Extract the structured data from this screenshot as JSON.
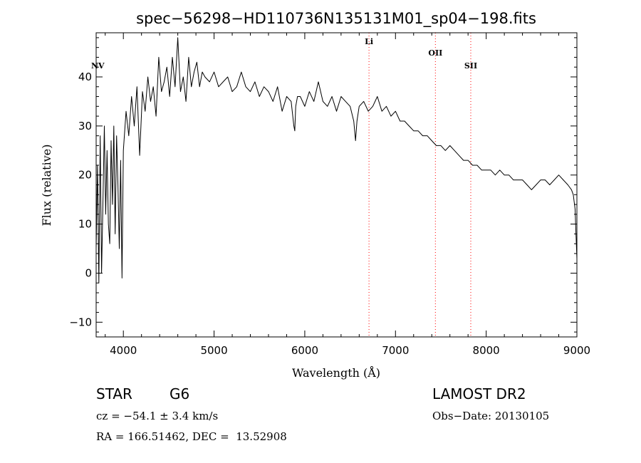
{
  "info": {
    "class_label": "STAR",
    "subclass": "G6",
    "redshift_text": "cz = −54.1 ± 3.4 km/s",
    "coords_text": "RA = 166.51462, DEC =  13.52908",
    "survey": "LAMOST DR2",
    "obs_date": "Obs−Date: 20130105"
  },
  "chart_data": {
    "type": "line",
    "title": "spec−56298−HD110736N135131M01_sp04−198.fits",
    "xlabel": "Wavelength (Å)",
    "ylabel": "Flux (relative)",
    "xlim": [
      3700,
      9000
    ],
    "ylim": [
      -13,
      49
    ],
    "x_ticks": [
      4000,
      5000,
      6000,
      7000,
      8000,
      9000
    ],
    "y_ticks": [
      -10,
      0,
      10,
      20,
      30,
      40
    ],
    "y_tick_labels": [
      "−10",
      "0",
      "10",
      "20",
      "30",
      "40"
    ],
    "grid": false,
    "series": [
      {
        "x": [
          3700,
          3715,
          3730,
          3745,
          3760,
          3775,
          3790,
          3805,
          3820,
          3835,
          3850,
          3865,
          3880,
          3895,
          3910,
          3925,
          3940,
          3955,
          3970,
          3985,
          4000,
          4030,
          4060,
          4090,
          4120,
          4150,
          4180,
          4210,
          4240,
          4270,
          4300,
          4330,
          4360,
          4390,
          4420,
          4450,
          4480,
          4510,
          4540,
          4570,
          4600,
          4630,
          4660,
          4690,
          4720,
          4750,
          4780,
          4810,
          4840,
          4870,
          4900,
          4950,
          5000,
          5050,
          5100,
          5150,
          5200,
          5250,
          5300,
          5350,
          5400,
          5450,
          5500,
          5550,
          5600,
          5650,
          5700,
          5750,
          5800,
          5850,
          5880,
          5890,
          5900,
          5920,
          5950,
          6000,
          6050,
          6100,
          6150,
          6200,
          6250,
          6300,
          6350,
          6400,
          6450,
          6500,
          6540,
          6560,
          6575,
          6600,
          6650,
          6700,
          6750,
          6800,
          6850,
          6900,
          6950,
          7000,
          7050,
          7100,
          7150,
          7200,
          7250,
          7300,
          7350,
          7400,
          7450,
          7500,
          7550,
          7600,
          7650,
          7700,
          7750,
          7800,
          7850,
          7900,
          7950,
          8000,
          8050,
          8100,
          8150,
          8200,
          8250,
          8300,
          8350,
          8400,
          8450,
          8500,
          8550,
          8600,
          8650,
          8700,
          8750,
          8800,
          8850,
          8900,
          8940,
          8960,
          8980,
          8990,
          9000
        ],
        "y": [
          5,
          22,
          -2,
          28,
          0,
          15,
          30,
          12,
          25,
          10,
          6,
          27,
          14,
          30,
          8,
          28,
          18,
          5,
          23,
          -1,
          25,
          33,
          28,
          36,
          30,
          38,
          24,
          37,
          33,
          40,
          35,
          38,
          32,
          44,
          37,
          39,
          42,
          36,
          44,
          38,
          48,
          37,
          40,
          35,
          44,
          38,
          41,
          43,
          38,
          41,
          40,
          39,
          41,
          38,
          39,
          40,
          37,
          38,
          41,
          38,
          37,
          39,
          36,
          38,
          37,
          35,
          38,
          33,
          36,
          35,
          30,
          29,
          34,
          36,
          36,
          34,
          37,
          35,
          39,
          35,
          34,
          36,
          33,
          36,
          35,
          34,
          31,
          27,
          31,
          34,
          35,
          33,
          34,
          36,
          33,
          34,
          32,
          33,
          31,
          31,
          30,
          29,
          29,
          28,
          28,
          27,
          26,
          26,
          25,
          26,
          25,
          24,
          23,
          23,
          22,
          22,
          21,
          21,
          21,
          20,
          21,
          20,
          20,
          19,
          19,
          19,
          18,
          17,
          18,
          19,
          19,
          18,
          19,
          20,
          19,
          18,
          17,
          16,
          13,
          8,
          3
        ]
      }
    ],
    "line_markers": [
      {
        "label": "NV",
        "x": 3700
      },
      {
        "label": "Li",
        "x": 6708
      },
      {
        "label": "OII",
        "x": 7440
      },
      {
        "label": "SII",
        "x": 7830
      }
    ],
    "colors": {
      "spectrum": "#000000",
      "marker_line": "#ff0000"
    }
  }
}
